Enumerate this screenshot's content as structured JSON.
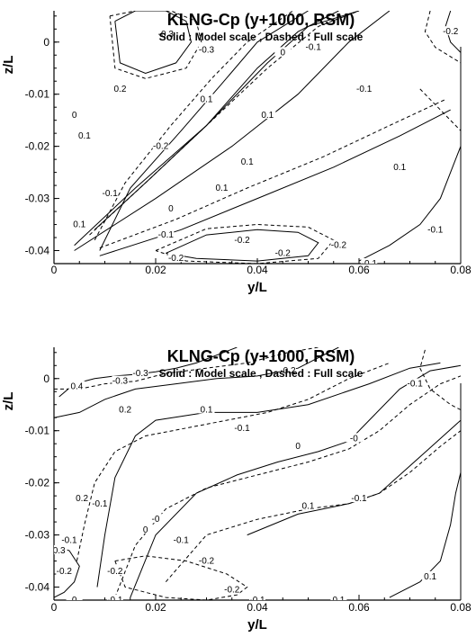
{
  "colors": {
    "line": "#000000",
    "background": "#ffffff"
  },
  "chart_data": [
    {
      "type": "contour",
      "title": "KLNG-Cp (y+1000, RSM)",
      "subtitle": "Solid : Model scale ,  Dashed : Full scale",
      "xlabel": "y/L",
      "ylabel": "z/L",
      "xlim": [
        0,
        0.08
      ],
      "ylim": [
        -0.0425,
        0.006
      ],
      "xticks": [
        "0",
        "0.02",
        "0.04",
        "0.06",
        "0.08"
      ],
      "yticks": [
        "0",
        "-0.01",
        "-0.02",
        "-0.03",
        "-0.04"
      ],
      "levels": [
        -0.3,
        -0.2,
        -0.1,
        0,
        0.1,
        0.2,
        0.3,
        0.4
      ],
      "series": [
        {
          "name": "Model scale",
          "style": "solid",
          "level": -0.3,
          "x": [
            0.012,
            0.016,
            0.022,
            0.026,
            0.027,
            0.024,
            0.018,
            0.013,
            0.012
          ],
          "y": [
            0.004,
            0.006,
            0.006,
            0.004,
            0.0,
            -0.004,
            -0.006,
            -0.004,
            0.004
          ]
        },
        {
          "name": "Model scale",
          "style": "solid",
          "level": -0.2,
          "x": [
            0.009,
            0.015,
            0.025,
            0.033,
            0.04,
            0.05
          ],
          "y": [
            -0.04,
            -0.028,
            -0.017,
            -0.008,
            0.0,
            0.006
          ]
        },
        {
          "name": "Model scale",
          "style": "solid",
          "level": -0.1,
          "x": [
            0.008,
            0.018,
            0.03,
            0.04,
            0.048,
            0.056
          ],
          "y": [
            -0.036,
            -0.027,
            -0.016,
            -0.005,
            0.002,
            0.006
          ]
        },
        {
          "name": "Model scale",
          "style": "solid",
          "level": 0,
          "x": [
            0.004,
            0.016,
            0.03,
            0.042,
            0.05,
            0.06
          ],
          "y": [
            -0.039,
            -0.028,
            -0.016,
            -0.004,
            0.003,
            0.006
          ]
        },
        {
          "name": "Model scale",
          "style": "solid",
          "level": 0.1,
          "x": [
            0.004,
            0.02,
            0.035,
            0.048,
            0.058,
            0.066
          ],
          "y": [
            -0.04,
            -0.03,
            -0.02,
            -0.01,
            0.0,
            0.006
          ]
        },
        {
          "name": "Model scale",
          "style": "solid",
          "level": -0.1,
          "x": [
            0.009,
            0.025,
            0.04,
            0.055,
            0.068,
            0.078
          ],
          "y": [
            -0.041,
            -0.036,
            -0.03,
            -0.024,
            -0.018,
            -0.013
          ]
        },
        {
          "name": "Model scale",
          "style": "solid",
          "level": -0.2,
          "x": [
            0.022,
            0.03,
            0.04,
            0.048,
            0.052,
            0.05,
            0.04,
            0.028,
            0.022
          ],
          "y": [
            -0.0405,
            -0.037,
            -0.036,
            -0.0365,
            -0.0385,
            -0.041,
            -0.042,
            -0.0415,
            -0.0405
          ]
        },
        {
          "name": "Model scale",
          "style": "solid",
          "level": 0.1,
          "x": [
            0.06,
            0.066,
            0.072,
            0.076,
            0.078,
            0.08
          ],
          "y": [
            -0.042,
            -0.039,
            -0.035,
            -0.03,
            -0.025,
            -0.02
          ]
        },
        {
          "name": "Model scale",
          "style": "solid",
          "level": -0.2,
          "x": [
            0.078,
            0.077,
            0.078,
            0.08
          ],
          "y": [
            0.006,
            0.003,
            0.0,
            -0.002
          ]
        },
        {
          "name": "Full scale",
          "style": "dashed",
          "level": -0.3,
          "x": [
            0.011,
            0.016,
            0.023,
            0.028,
            0.029,
            0.026,
            0.018,
            0.012,
            0.011
          ],
          "y": [
            0.005,
            0.006,
            0.006,
            0.004,
            0.0,
            -0.005,
            -0.007,
            -0.005,
            0.005
          ]
        },
        {
          "name": "Full scale",
          "style": "dashed",
          "level": -0.2,
          "x": [
            0.008,
            0.014,
            0.023,
            0.031,
            0.038,
            0.047
          ],
          "y": [
            -0.038,
            -0.027,
            -0.016,
            -0.007,
            0.0,
            0.006
          ]
        },
        {
          "name": "Full scale",
          "style": "dashed",
          "level": -0.1,
          "x": [
            0.007,
            0.018,
            0.03,
            0.042,
            0.052,
            0.06
          ],
          "y": [
            -0.037,
            -0.027,
            -0.016,
            -0.005,
            0.003,
            0.006
          ]
        },
        {
          "name": "Full scale",
          "style": "dashed",
          "level": -0.1,
          "x": [
            0.009,
            0.024,
            0.038,
            0.053,
            0.066,
            0.077
          ],
          "y": [
            -0.0395,
            -0.034,
            -0.028,
            -0.022,
            -0.016,
            -0.011
          ]
        },
        {
          "name": "Full scale",
          "style": "dashed",
          "level": -0.2,
          "x": [
            0.02,
            0.03,
            0.04,
            0.05,
            0.055,
            0.052,
            0.04,
            0.026,
            0.02
          ],
          "y": [
            -0.04,
            -0.0358,
            -0.035,
            -0.0355,
            -0.038,
            -0.0415,
            -0.0425,
            -0.042,
            -0.04
          ]
        },
        {
          "name": "Full scale",
          "style": "dashed",
          "level": -0.2,
          "x": [
            0.074,
            0.073,
            0.075,
            0.08
          ],
          "y": [
            0.006,
            0.002,
            -0.001,
            -0.004
          ]
        },
        {
          "name": "Full scale",
          "style": "dashed",
          "level": 0.1,
          "x": [
            0.072,
            0.078,
            0.08
          ],
          "y": [
            -0.009,
            -0.015,
            -0.017
          ]
        }
      ],
      "labels": [
        {
          "text": "-0.3",
          "x": 0.022,
          "y": 0.0015
        },
        {
          "text": "-0.3",
          "x": 0.03,
          "y": -0.0015
        },
        {
          "text": "-0.1",
          "x": 0.051,
          "y": -0.001
        },
        {
          "text": "0",
          "x": 0.045,
          "y": -0.002
        },
        {
          "text": "-0.1",
          "x": 0.061,
          "y": -0.009
        },
        {
          "text": "0.1",
          "x": 0.03,
          "y": -0.011
        },
        {
          "text": "0.1",
          "x": 0.042,
          "y": -0.014
        },
        {
          "text": "-0.2",
          "x": 0.021,
          "y": -0.02
        },
        {
          "text": "0.1",
          "x": 0.038,
          "y": -0.023
        },
        {
          "text": "0.1",
          "x": 0.068,
          "y": -0.024
        },
        {
          "text": "0.1",
          "x": 0.033,
          "y": -0.028
        },
        {
          "text": "0",
          "x": 0.023,
          "y": -0.032
        },
        {
          "text": "-0.1",
          "x": 0.022,
          "y": -0.037
        },
        {
          "text": "-0.2",
          "x": 0.037,
          "y": -0.038
        },
        {
          "text": "-0.2",
          "x": 0.024,
          "y": -0.0415
        },
        {
          "text": "-0.2",
          "x": 0.045,
          "y": -0.0405
        },
        {
          "text": "-0.2",
          "x": 0.056,
          "y": -0.039
        },
        {
          "text": "-0.1",
          "x": 0.062,
          "y": -0.0425
        },
        {
          "text": "-0.1",
          "x": 0.075,
          "y": -0.036
        },
        {
          "text": "-0.2",
          "x": 0.078,
          "y": 0.002
        },
        {
          "text": "0.1",
          "x": 0.006,
          "y": -0.018
        },
        {
          "text": "0.2",
          "x": 0.013,
          "y": -0.009
        },
        {
          "text": "-0.1",
          "x": 0.011,
          "y": -0.029
        },
        {
          "text": "0.1",
          "x": 0.005,
          "y": -0.035
        },
        {
          "text": "0",
          "x": 0.004,
          "y": -0.014
        }
      ]
    },
    {
      "type": "contour",
      "title": "KLNG-Cp (y+1000, RSM)",
      "subtitle": "Solid : Model scale ,  Dashed : Full scale",
      "xlabel": "y/L",
      "ylabel": "z/L",
      "xlim": [
        0,
        0.08
      ],
      "ylim": [
        -0.0425,
        0.006
      ],
      "xticks": [
        "0",
        "0.02",
        "0.04",
        "0.06",
        "0.08"
      ],
      "yticks": [
        "0",
        "-0.01",
        "-0.02",
        "-0.03",
        "-0.04"
      ],
      "levels": [
        -0.3,
        -0.2,
        -0.1,
        0,
        0.1,
        0.2,
        0.3,
        0.4
      ],
      "series": [
        {
          "name": "Model scale",
          "style": "solid",
          "level": 0.4,
          "x": [
            0.001,
            0.004,
            0.008,
            0.012,
            0.016,
            0.02,
            0.024,
            0.028,
            0.036
          ],
          "y": [
            -0.0035,
            -0.001,
            0.0,
            0.0005,
            0.0008,
            0.0013,
            0.002,
            0.003,
            0.006
          ]
        },
        {
          "name": "Model scale",
          "style": "solid",
          "level": -0.2,
          "x": [
            0.0,
            0.005,
            0.01,
            0.016,
            0.024,
            0.032,
            0.04,
            0.048,
            0.056
          ],
          "y": [
            -0.0075,
            -0.0065,
            -0.004,
            -0.002,
            -0.001,
            0.0,
            0.0005,
            0.002,
            0.006
          ]
        },
        {
          "name": "Model scale",
          "style": "solid",
          "level": 0.1,
          "x": [
            0.0085,
            0.01,
            0.012,
            0.016,
            0.02,
            0.03,
            0.04,
            0.05,
            0.062,
            0.07,
            0.076
          ],
          "y": [
            -0.04,
            -0.03,
            -0.019,
            -0.011,
            -0.008,
            -0.0065,
            -0.0065,
            -0.005,
            -0.001,
            0.002,
            0.003
          ]
        },
        {
          "name": "Model scale",
          "style": "solid",
          "level": 0,
          "x": [
            0.015,
            0.02,
            0.028,
            0.036,
            0.044,
            0.052,
            0.058,
            0.062,
            0.068,
            0.074,
            0.08
          ],
          "y": [
            -0.042,
            -0.03,
            -0.022,
            -0.0185,
            -0.016,
            -0.014,
            -0.012,
            -0.008,
            -0.002,
            0.0015,
            0.0025
          ]
        },
        {
          "name": "Model scale",
          "style": "solid",
          "level": 0.1,
          "x": [
            0.038,
            0.048,
            0.058,
            0.064,
            0.072,
            0.08
          ],
          "y": [
            -0.03,
            -0.026,
            -0.024,
            -0.022,
            -0.015,
            -0.008
          ]
        },
        {
          "name": "Model scale",
          "style": "solid",
          "level": 0.1,
          "x": [
            0.066,
            0.072,
            0.076,
            0.078,
            0.079,
            0.08
          ],
          "y": [
            -0.042,
            -0.039,
            -0.035,
            -0.028,
            -0.022,
            -0.018
          ]
        },
        {
          "name": "Model scale",
          "style": "solid",
          "level": 0.2,
          "x": [
            0.0,
            0.003,
            0.005,
            0.004,
            0.002,
            0.0
          ],
          "y": [
            -0.032,
            -0.033,
            -0.036,
            -0.039,
            -0.041,
            -0.042
          ]
        },
        {
          "name": "Full scale",
          "style": "dashed",
          "level": -0.3,
          "x": [
            0.0,
            0.005,
            0.01,
            0.016,
            0.022,
            0.03,
            0.038,
            0.046,
            0.052
          ],
          "y": [
            -0.002,
            -0.002,
            -0.001,
            -0.0005,
            0.001,
            0.002,
            0.003,
            0.005,
            0.006
          ]
        },
        {
          "name": "Full scale",
          "style": "dashed",
          "level": -0.1,
          "x": [
            0.0045,
            0.006,
            0.008,
            0.012,
            0.018,
            0.026,
            0.034,
            0.042,
            0.05,
            0.058,
            0.066
          ],
          "y": [
            -0.035,
            -0.028,
            -0.02,
            -0.014,
            -0.011,
            -0.0095,
            -0.008,
            -0.0065,
            -0.004,
            0.0,
            0.003
          ]
        },
        {
          "name": "Full scale",
          "style": "dashed",
          "level": 0,
          "x": [
            0.012,
            0.016,
            0.022,
            0.03,
            0.04,
            0.05,
            0.058,
            0.064,
            0.07,
            0.076,
            0.08
          ],
          "y": [
            -0.042,
            -0.032,
            -0.025,
            -0.021,
            -0.0185,
            -0.016,
            -0.0135,
            -0.01,
            -0.005,
            -0.001,
            0.0005
          ]
        },
        {
          "name": "Full scale",
          "style": "dashed",
          "level": -0.1,
          "x": [
            0.022,
            0.03,
            0.04,
            0.05,
            0.058,
            0.064,
            0.07,
            0.076,
            0.08
          ],
          "y": [
            -0.039,
            -0.03,
            -0.027,
            -0.025,
            -0.024,
            -0.022,
            -0.018,
            -0.013,
            -0.01
          ]
        },
        {
          "name": "Full scale",
          "style": "dashed",
          "level": -0.2,
          "x": [
            0.012,
            0.018,
            0.026,
            0.034,
            0.038,
            0.036,
            0.03,
            0.022,
            0.014,
            0.012
          ],
          "y": [
            -0.035,
            -0.034,
            -0.035,
            -0.0375,
            -0.04,
            -0.0415,
            -0.0425,
            -0.042,
            -0.04,
            -0.035
          ]
        },
        {
          "name": "Full scale",
          "style": "dashed",
          "level": -0.1,
          "x": [
            0.073,
            0.072,
            0.074,
            0.078,
            0.08
          ],
          "y": [
            0.0055,
            0.002,
            -0.002,
            -0.005,
            -0.006
          ]
        }
      ],
      "labels": [
        {
          "text": "0.4",
          "x": 0.0045,
          "y": -0.0015
        },
        {
          "text": "-0.3",
          "x": 0.013,
          "y": -0.0005
        },
        {
          "text": "-0.3",
          "x": 0.017,
          "y": 0.001
        },
        {
          "text": "-0.2",
          "x": 0.046,
          "y": 0.0015
        },
        {
          "text": "0.2",
          "x": 0.014,
          "y": -0.006
        },
        {
          "text": "0.1",
          "x": 0.03,
          "y": -0.006
        },
        {
          "text": "-0.1",
          "x": 0.037,
          "y": -0.0095
        },
        {
          "text": "0",
          "x": 0.048,
          "y": -0.013
        },
        {
          "text": "-0",
          "x": 0.059,
          "y": -0.0115
        },
        {
          "text": "-0.1",
          "x": 0.071,
          "y": -0.001
        },
        {
          "text": "0.2",
          "x": 0.0055,
          "y": -0.023
        },
        {
          "text": "-0.1",
          "x": 0.009,
          "y": -0.024
        },
        {
          "text": "-0",
          "x": 0.02,
          "y": -0.027
        },
        {
          "text": "0",
          "x": 0.018,
          "y": -0.029
        },
        {
          "text": "0.1",
          "x": 0.05,
          "y": -0.0245
        },
        {
          "text": "-0.1",
          "x": 0.06,
          "y": -0.023
        },
        {
          "text": "-0.1",
          "x": 0.025,
          "y": -0.031
        },
        {
          "text": "-0.1",
          "x": 0.003,
          "y": -0.031
        },
        {
          "text": "0.3",
          "x": 0.001,
          "y": -0.033
        },
        {
          "text": "-0.2",
          "x": 0.03,
          "y": -0.035
        },
        {
          "text": "-0.2",
          "x": 0.012,
          "y": -0.037
        },
        {
          "text": "-0.2",
          "x": 0.002,
          "y": -0.037
        },
        {
          "text": "-0.2",
          "x": 0.035,
          "y": -0.0405
        },
        {
          "text": "-0.1",
          "x": 0.012,
          "y": -0.0425
        },
        {
          "text": "0",
          "x": 0.004,
          "y": -0.0425
        },
        {
          "text": "0.1",
          "x": 0.074,
          "y": -0.038
        },
        {
          "text": "-0.1",
          "x": 0.04,
          "y": -0.0425
        },
        {
          "text": "0.1",
          "x": 0.056,
          "y": -0.0425
        }
      ]
    }
  ]
}
